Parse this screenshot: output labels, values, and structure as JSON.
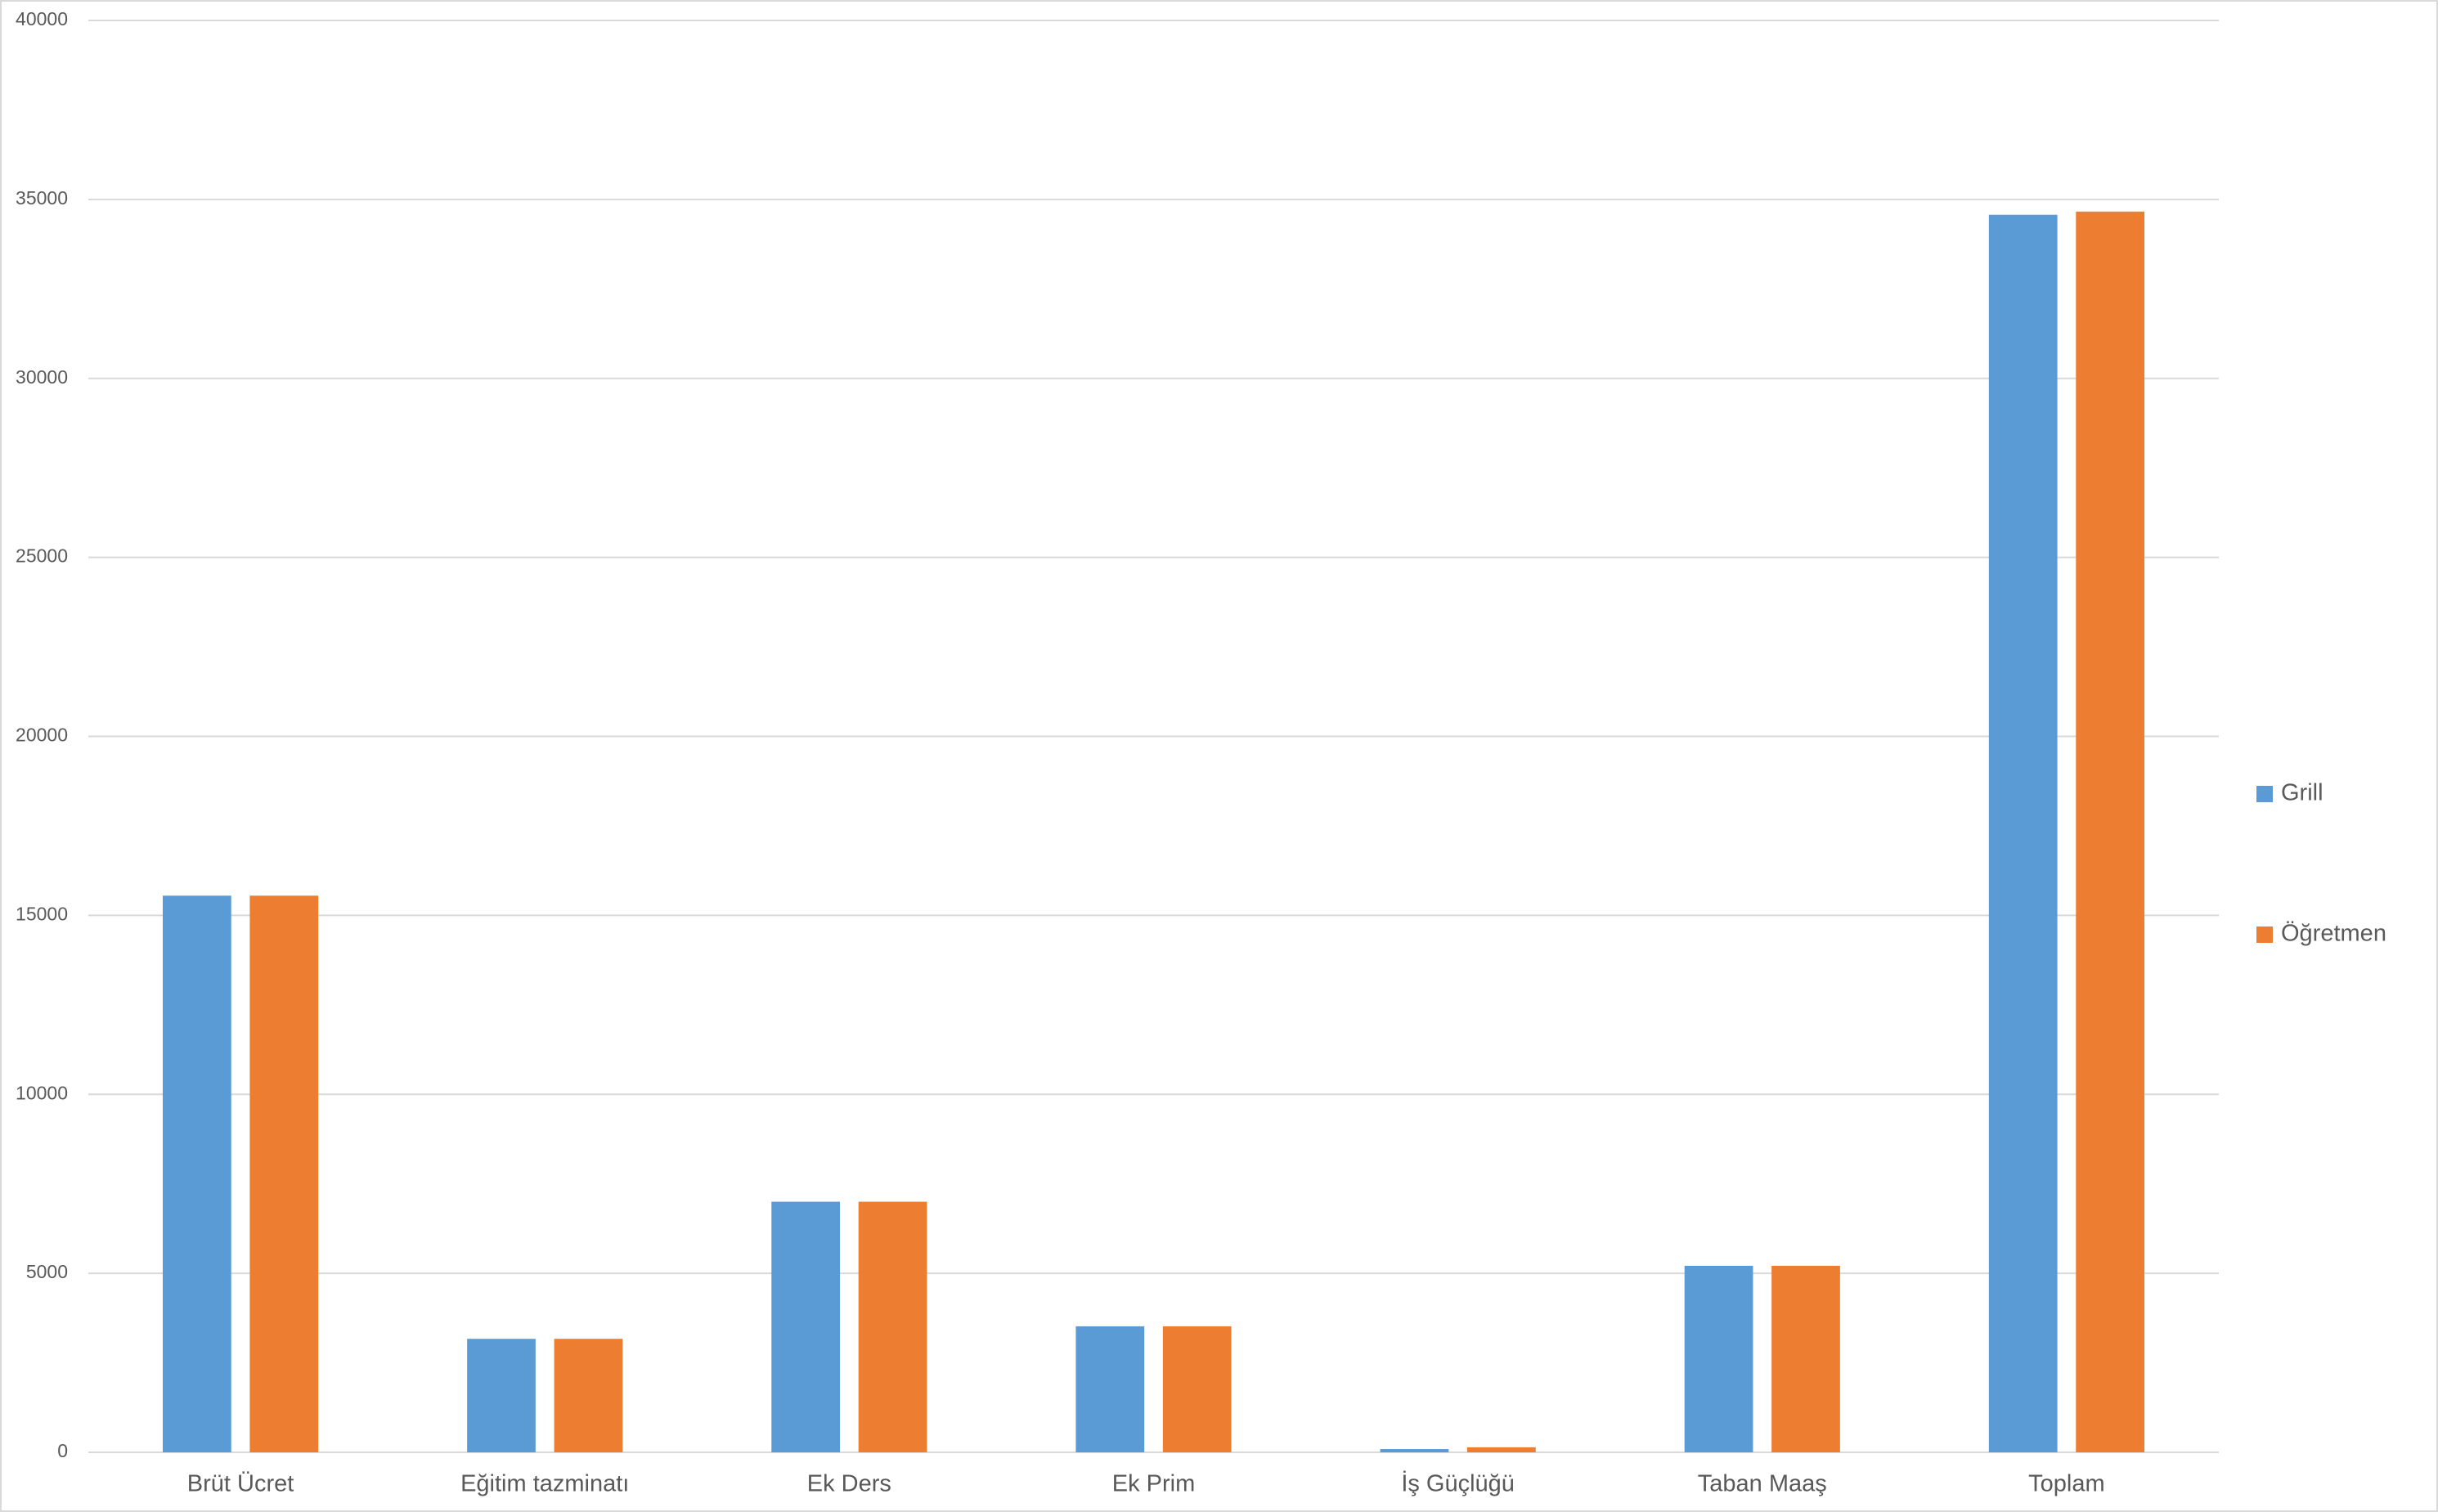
{
  "chart_data": {
    "type": "bar",
    "categories": [
      "Brüt Ücret",
      "Eğitim tazminatı",
      "Ek Ders",
      "Ek Prim",
      "İş Güçlüğü",
      "Taban Maaş",
      "Toplam"
    ],
    "series": [
      {
        "name": "Grill",
        "color": "#5b9bd5",
        "values": [
          15550,
          3170,
          7000,
          3520,
          90,
          5210,
          34570
        ]
      },
      {
        "name": "Öğretmen",
        "color": "#ed7d31",
        "values": [
          15550,
          3170,
          7000,
          3520,
          140,
          5210,
          34660
        ]
      }
    ],
    "ylim": [
      0,
      40000
    ],
    "yticks": [
      0,
      5000,
      10000,
      15000,
      20000,
      25000,
      30000,
      35000,
      40000
    ],
    "grid": true,
    "legend": "right"
  }
}
